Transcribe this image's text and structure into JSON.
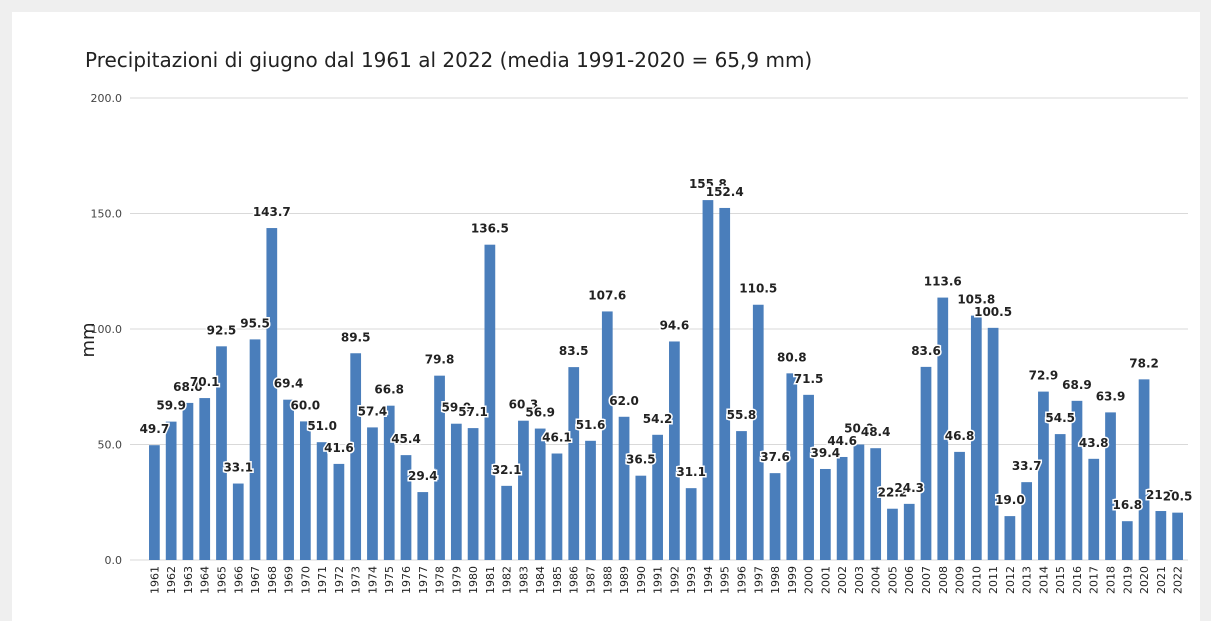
{
  "chart_data": {
    "type": "bar",
    "title": "Precipitazioni di giugno dal 1961 al 2022 (media 1991-2020 = 65,9 mm)",
    "y_label": "mm",
    "categories": [
      "1961",
      "1962",
      "1963",
      "1964",
      "1965",
      "1966",
      "1967",
      "1968",
      "1969",
      "1970",
      "1971",
      "1972",
      "1973",
      "1974",
      "1975",
      "1976",
      "1977",
      "1978",
      "1979",
      "1980",
      "1981",
      "1982",
      "1983",
      "1984",
      "1985",
      "1986",
      "1987",
      "1988",
      "1989",
      "1990",
      "1991",
      "1992",
      "1993",
      "1994",
      "1995",
      "1996",
      "1997",
      "1998",
      "1999",
      "2000",
      "2001",
      "2002",
      "2003",
      "2004",
      "2005",
      "2006",
      "2007",
      "2008",
      "2009",
      "2010",
      "2011",
      "2012",
      "2013",
      "2014",
      "2015",
      "2016",
      "2017",
      "2018",
      "2019",
      "2020",
      "2021",
      "2022"
    ],
    "values": [
      49.7,
      59.9,
      68.0,
      70.1,
      92.5,
      33.1,
      95.5,
      143.7,
      69.4,
      60.0,
      51.0,
      41.6,
      89.5,
      57.4,
      66.8,
      45.4,
      29.4,
      79.8,
      59.0,
      57.1,
      136.5,
      32.1,
      60.3,
      56.9,
      46.1,
      83.5,
      51.6,
      107.6,
      62.0,
      36.5,
      54.2,
      94.6,
      31.1,
      155.8,
      152.4,
      55.8,
      110.5,
      37.6,
      80.8,
      71.5,
      39.4,
      44.6,
      50.0,
      48.4,
      22.2,
      24.3,
      83.6,
      113.6,
      46.8,
      105.8,
      100.5,
      19.0,
      33.7,
      72.9,
      54.5,
      68.9,
      43.8,
      63.9,
      16.8,
      78.2,
      21.2,
      20.5
    ],
    "value_labels": [
      "49.7",
      "59.9",
      "68.0",
      "70.1",
      "92.5",
      "33.1",
      "95.5",
      "143.7",
      "69.4",
      "60.0",
      "51.0",
      "41.6",
      "89.5",
      "57.4",
      "66.8",
      "45.4",
      "29.4",
      "79.8",
      "59.0",
      "57.1",
      "136.5",
      "32.1",
      "60.3",
      "56.9",
      "46.1",
      "83.5",
      "51.6",
      "107.6",
      "62.0",
      "36.5",
      "54.2",
      "94.6",
      "31.1",
      "155.8",
      "152.4",
      "55.8",
      "110.5",
      "37.6",
      "80.8",
      "71.5",
      "39.4",
      "44.6",
      "50.0",
      "48.4",
      "22.2",
      "24.3",
      "83.6",
      "113.6",
      "46.8",
      "105.8",
      "100.5",
      "19.0",
      "33.7",
      "72.9",
      "54.5",
      "68.9",
      "43.8",
      "63.9",
      "16.8",
      "78.2",
      "21.2",
      "20.5"
    ],
    "color": "#4a7ebb",
    "ylim": [
      0,
      200
    ],
    "yticks": [
      {
        "value": 0,
        "label": "0.0"
      },
      {
        "value": 50,
        "label": "50.0"
      },
      {
        "value": 100,
        "label": "100.0"
      },
      {
        "value": 150,
        "label": "150.0"
      },
      {
        "value": 200,
        "label": "200.0"
      }
    ],
    "grid": true
  }
}
